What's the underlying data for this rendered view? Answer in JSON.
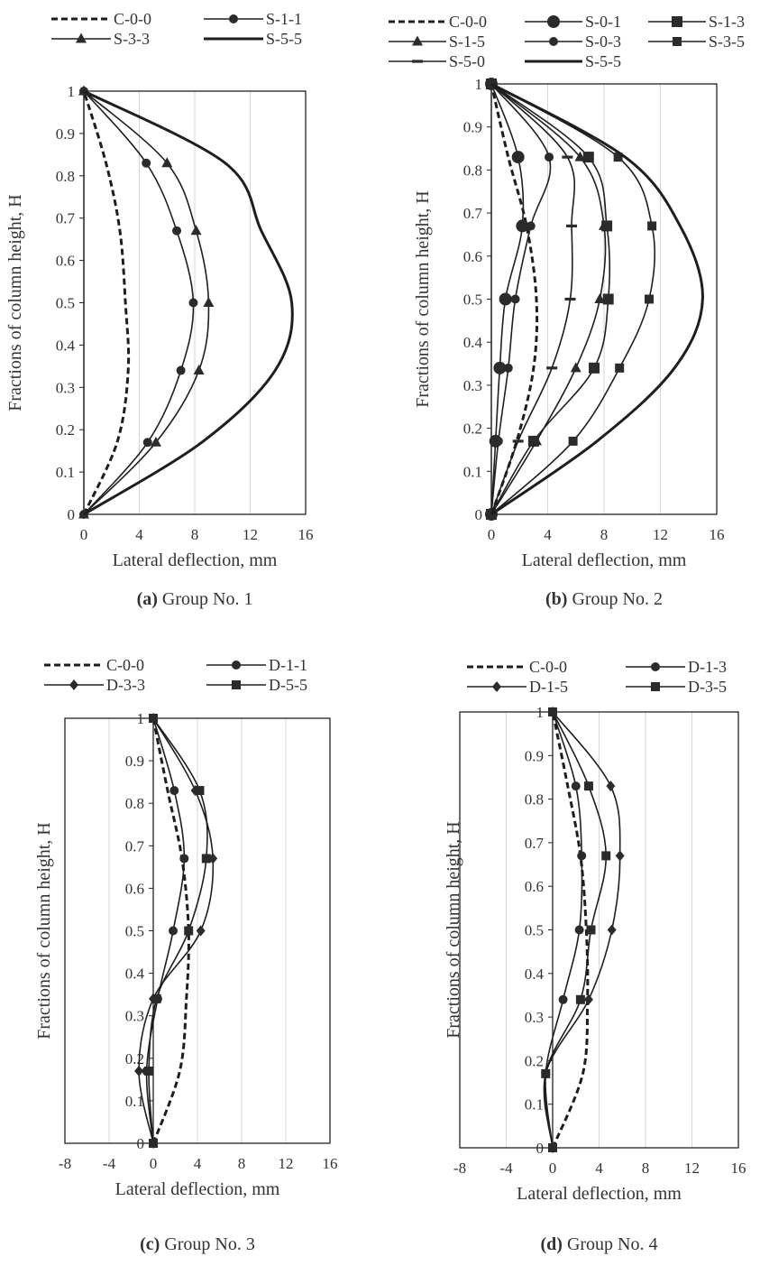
{
  "chart_data": [
    {
      "type": "line",
      "caption_bold": "(a)",
      "caption_text": " Group No. 1",
      "xlabel": "Lateral deflection, mm",
      "ylabel": "Fractions of column height, H",
      "xlim": [
        0,
        16
      ],
      "ylim": [
        0,
        1
      ],
      "x_ticks": [
        "0",
        "4",
        "8",
        "12",
        "16"
      ],
      "y_ticks": [
        "0",
        "0.1",
        "0.2",
        "0.3",
        "0.4",
        "0.5",
        "0.6",
        "0.7",
        "0.8",
        "0.9",
        "1"
      ],
      "grid": "vertical",
      "legend_columns": 2,
      "series": [
        {
          "name": "C-0-0",
          "style": "dashed",
          "marker": "none",
          "x": [
            0,
            2.4,
            3.2,
            3.0,
            2.6,
            1.6,
            0
          ],
          "y": [
            0,
            0.17,
            0.34,
            0.5,
            0.67,
            0.83,
            1
          ]
        },
        {
          "name": "S-1-1",
          "style": "solid",
          "marker": "circle",
          "x": [
            0,
            4.6,
            7.0,
            7.9,
            6.7,
            4.5,
            0
          ],
          "y": [
            0,
            0.17,
            0.34,
            0.5,
            0.67,
            0.83,
            1
          ]
        },
        {
          "name": "S-3-3",
          "style": "solid",
          "marker": "triangle",
          "x": [
            0,
            5.2,
            8.3,
            9.0,
            8.1,
            6.0,
            0
          ],
          "y": [
            0,
            0.17,
            0.34,
            0.5,
            0.67,
            0.83,
            1
          ]
        },
        {
          "name": "S-5-5",
          "style": "thick",
          "marker": "none",
          "x": [
            0,
            8.5,
            13.8,
            15.0,
            12.8,
            10.2,
            0
          ],
          "y": [
            0,
            0.17,
            0.34,
            0.5,
            0.67,
            0.83,
            1
          ]
        }
      ]
    },
    {
      "type": "line",
      "caption_bold": "(b)",
      "caption_text": " Group No. 2",
      "xlabel": "Lateral deflection, mm",
      "ylabel": "Fractions of column height, H",
      "xlim": [
        0,
        16
      ],
      "ylim": [
        0,
        1
      ],
      "x_ticks": [
        "0",
        "4",
        "8",
        "12",
        "16"
      ],
      "y_ticks": [
        "0",
        "0.1",
        "0.2",
        "0.3",
        "0.4",
        "0.5",
        "0.6",
        "0.7",
        "0.8",
        "0.9",
        "1"
      ],
      "grid": "vertical",
      "legend_columns": 3,
      "series": [
        {
          "name": "C-0-0",
          "style": "dashed",
          "marker": "none",
          "x": [
            0,
            1.8,
            3.0,
            3.2,
            2.5,
            1.2,
            0
          ],
          "y": [
            0,
            0.17,
            0.34,
            0.5,
            0.67,
            0.83,
            1
          ]
        },
        {
          "name": "S-0-1",
          "style": "solid",
          "marker": "circle-lg",
          "x": [
            0,
            0.3,
            0.6,
            1.0,
            2.2,
            1.9,
            0
          ],
          "y": [
            0,
            0.17,
            0.34,
            0.5,
            0.67,
            0.83,
            1
          ]
        },
        {
          "name": "S-1-3",
          "style": "solid",
          "marker": "square-lg",
          "x": [
            0,
            3.0,
            7.3,
            8.3,
            8.2,
            6.9,
            0
          ],
          "y": [
            0,
            0.17,
            0.34,
            0.5,
            0.67,
            0.83,
            1
          ]
        },
        {
          "name": "S-1-5",
          "style": "solid",
          "marker": "triangle",
          "x": [
            0,
            3.2,
            6.0,
            7.7,
            8.0,
            6.3,
            0
          ],
          "y": [
            0,
            0.17,
            0.34,
            0.5,
            0.67,
            0.83,
            1
          ]
        },
        {
          "name": "S-0-3",
          "style": "solid",
          "marker": "circle",
          "x": [
            0,
            0.5,
            1.2,
            1.7,
            2.8,
            4.1,
            0
          ],
          "y": [
            0,
            0.17,
            0.34,
            0.5,
            0.67,
            0.83,
            1
          ]
        },
        {
          "name": "S-3-5",
          "style": "solid",
          "marker": "square",
          "x": [
            0,
            5.8,
            9.1,
            11.2,
            11.4,
            9.0,
            0
          ],
          "y": [
            0,
            0.17,
            0.34,
            0.5,
            0.67,
            0.83,
            1
          ]
        },
        {
          "name": "S-5-0",
          "style": "solid",
          "marker": "dash",
          "x": [
            0,
            1.9,
            4.3,
            5.6,
            5.7,
            5.4,
            0
          ],
          "y": [
            0,
            0.17,
            0.34,
            0.5,
            0.67,
            0.83,
            1
          ]
        },
        {
          "name": "S-5-5",
          "style": "thick",
          "marker": "none",
          "x": [
            0,
            7.5,
            13.0,
            15.0,
            13.4,
            9.5,
            0
          ],
          "y": [
            0,
            0.17,
            0.34,
            0.5,
            0.67,
            0.83,
            1
          ]
        }
      ]
    },
    {
      "type": "line",
      "caption_bold": "(c)",
      "caption_text": " Group No. 3",
      "xlabel": "Lateral deflection, mm",
      "ylabel": "Fractions of column height, H",
      "xlim": [
        -8,
        16
      ],
      "ylim": [
        0,
        1
      ],
      "x_ticks": [
        "-8",
        "-4",
        "0",
        "4",
        "8",
        "12",
        "16"
      ],
      "y_ticks": [
        "0",
        "0.1",
        "0.2",
        "0.3",
        "0.4",
        "0.5",
        "0.6",
        "0.7",
        "0.8",
        "0.9",
        "1"
      ],
      "grid": "vertical",
      "legend_columns": 2,
      "series": [
        {
          "name": "C-0-0",
          "style": "dashed",
          "marker": "none",
          "x": [
            0,
            2.4,
            3.0,
            3.2,
            2.6,
            1.3,
            0
          ],
          "y": [
            0,
            0.17,
            0.34,
            0.5,
            0.67,
            0.83,
            1
          ]
        },
        {
          "name": "D-1-1",
          "style": "solid",
          "marker": "circle",
          "x": [
            0,
            -0.6,
            0.4,
            1.8,
            2.8,
            1.9,
            0
          ],
          "y": [
            0,
            0.17,
            0.34,
            0.5,
            0.67,
            0.83,
            1
          ]
        },
        {
          "name": "D-3-3",
          "style": "solid",
          "marker": "diamond",
          "x": [
            0,
            -1.3,
            0.0,
            4.3,
            5.4,
            3.8,
            0
          ],
          "y": [
            0,
            0.17,
            0.34,
            0.5,
            0.67,
            0.83,
            1
          ]
        },
        {
          "name": "D-5-5",
          "style": "solid",
          "marker": "square",
          "x": [
            0,
            -0.4,
            0.3,
            3.2,
            4.8,
            4.2,
            0
          ],
          "y": [
            0,
            0.17,
            0.34,
            0.5,
            0.67,
            0.83,
            1
          ]
        }
      ]
    },
    {
      "type": "line",
      "caption_bold": "(d)",
      "caption_text": " Group No. 4",
      "xlabel": "Lateral deflection, mm",
      "ylabel": "Fractions of column height, H",
      "xlim": [
        -8,
        16
      ],
      "ylim": [
        0,
        1
      ],
      "x_ticks": [
        "-8",
        "-4",
        "0",
        "4",
        "8",
        "12",
        "16"
      ],
      "y_ticks": [
        "0",
        "0.1",
        "0.2",
        "0.3",
        "0.4",
        "0.5",
        "0.6",
        "0.7",
        "0.8",
        "0.9",
        "1"
      ],
      "grid": "vertical",
      "legend_columns": 2,
      "series": [
        {
          "name": "C-0-0",
          "style": "dashed",
          "marker": "none",
          "x": [
            0,
            2.6,
            3.0,
            2.9,
            2.4,
            1.3,
            0
          ],
          "y": [
            0,
            0.17,
            0.34,
            0.5,
            0.67,
            0.83,
            1
          ]
        },
        {
          "name": "D-1-3",
          "style": "solid",
          "marker": "circle",
          "x": [
            0,
            -0.6,
            0.9,
            2.3,
            2.5,
            2.0,
            0
          ],
          "y": [
            0,
            0.17,
            0.34,
            0.5,
            0.67,
            0.83,
            1
          ]
        },
        {
          "name": "D-1-5",
          "style": "solid",
          "marker": "diamond",
          "x": [
            0,
            -0.6,
            3.1,
            5.1,
            5.8,
            5.0,
            0
          ],
          "y": [
            0,
            0.17,
            0.34,
            0.5,
            0.67,
            0.83,
            1
          ]
        },
        {
          "name": "D-3-5",
          "style": "solid",
          "marker": "square",
          "x": [
            0,
            -0.6,
            2.4,
            3.3,
            4.6,
            3.1,
            0
          ],
          "y": [
            0,
            0.17,
            0.34,
            0.5,
            0.67,
            0.83,
            1
          ]
        }
      ]
    }
  ]
}
